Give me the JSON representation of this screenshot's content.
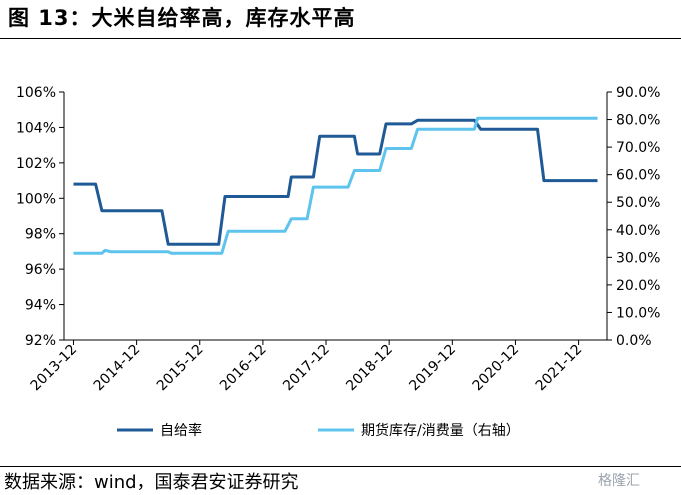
{
  "header": {
    "title": "图 13：大米自给率高，库存水平高"
  },
  "footer": {
    "source": "数据来源：wind，国泰君安证券研究",
    "watermark": "格隆汇"
  },
  "colors": {
    "dark": "#1f5a96",
    "light": "#5ec4ee",
    "axis": "#000000"
  },
  "chart_data": {
    "type": "line",
    "title": "",
    "x": [
      "2013-12",
      "2014-12",
      "2015-12",
      "2016-12",
      "2017-12",
      "2018-12",
      "2019-12",
      "2020-12",
      "2021-12"
    ],
    "y_left": {
      "min": 92,
      "max": 106,
      "ticks": [
        92,
        94,
        96,
        98,
        100,
        102,
        104,
        106
      ],
      "tick_labels": [
        "92%",
        "94%",
        "96%",
        "98%",
        "100%",
        "102%",
        "104%",
        "106%"
      ]
    },
    "y_right": {
      "min": 0,
      "max": 90,
      "ticks": [
        0,
        10,
        20,
        30,
        40,
        50,
        60,
        70,
        80,
        90
      ],
      "tick_labels": [
        "0.0%",
        "10.0%",
        "20.0%",
        "30.0%",
        "40.0%",
        "50.0%",
        "60.0%",
        "70.0%",
        "80.0%",
        "90.0%"
      ]
    },
    "legend_position": "bottom",
    "series": [
      {
        "name": "自给率",
        "axis": "left",
        "color": "#1f5a96",
        "points": [
          [
            0,
            100.8
          ],
          [
            0.35,
            100.8
          ],
          [
            0.45,
            99.3
          ],
          [
            1.4,
            99.3
          ],
          [
            1.5,
            97.4
          ],
          [
            2.3,
            97.4
          ],
          [
            2.4,
            100.1
          ],
          [
            3.4,
            100.1
          ],
          [
            3.45,
            101.2
          ],
          [
            3.8,
            101.2
          ],
          [
            3.9,
            103.5
          ],
          [
            4.45,
            103.5
          ],
          [
            4.5,
            102.5
          ],
          [
            4.85,
            102.5
          ],
          [
            4.95,
            104.2
          ],
          [
            5.35,
            104.2
          ],
          [
            5.45,
            104.4
          ],
          [
            6.35,
            104.4
          ],
          [
            6.45,
            103.9
          ],
          [
            7.35,
            103.9
          ],
          [
            7.45,
            101.0
          ],
          [
            8.3,
            101.0
          ]
        ]
      },
      {
        "name": "期货库存/消费量（右轴）",
        "axis": "right",
        "color": "#5ec4ee",
        "points": [
          [
            0,
            31.5
          ],
          [
            0.45,
            31.5
          ],
          [
            0.5,
            32.5
          ],
          [
            0.6,
            32.0
          ],
          [
            1.5,
            32.0
          ],
          [
            1.55,
            31.5
          ],
          [
            2.35,
            31.5
          ],
          [
            2.45,
            39.5
          ],
          [
            3.35,
            39.5
          ],
          [
            3.45,
            44.0
          ],
          [
            3.7,
            44.0
          ],
          [
            3.8,
            55.5
          ],
          [
            4.35,
            55.5
          ],
          [
            4.45,
            61.5
          ],
          [
            4.85,
            61.5
          ],
          [
            4.95,
            69.5
          ],
          [
            5.35,
            69.5
          ],
          [
            5.45,
            76.5
          ],
          [
            6.35,
            76.5
          ],
          [
            6.4,
            80.5
          ],
          [
            8.3,
            80.5
          ]
        ]
      }
    ]
  }
}
